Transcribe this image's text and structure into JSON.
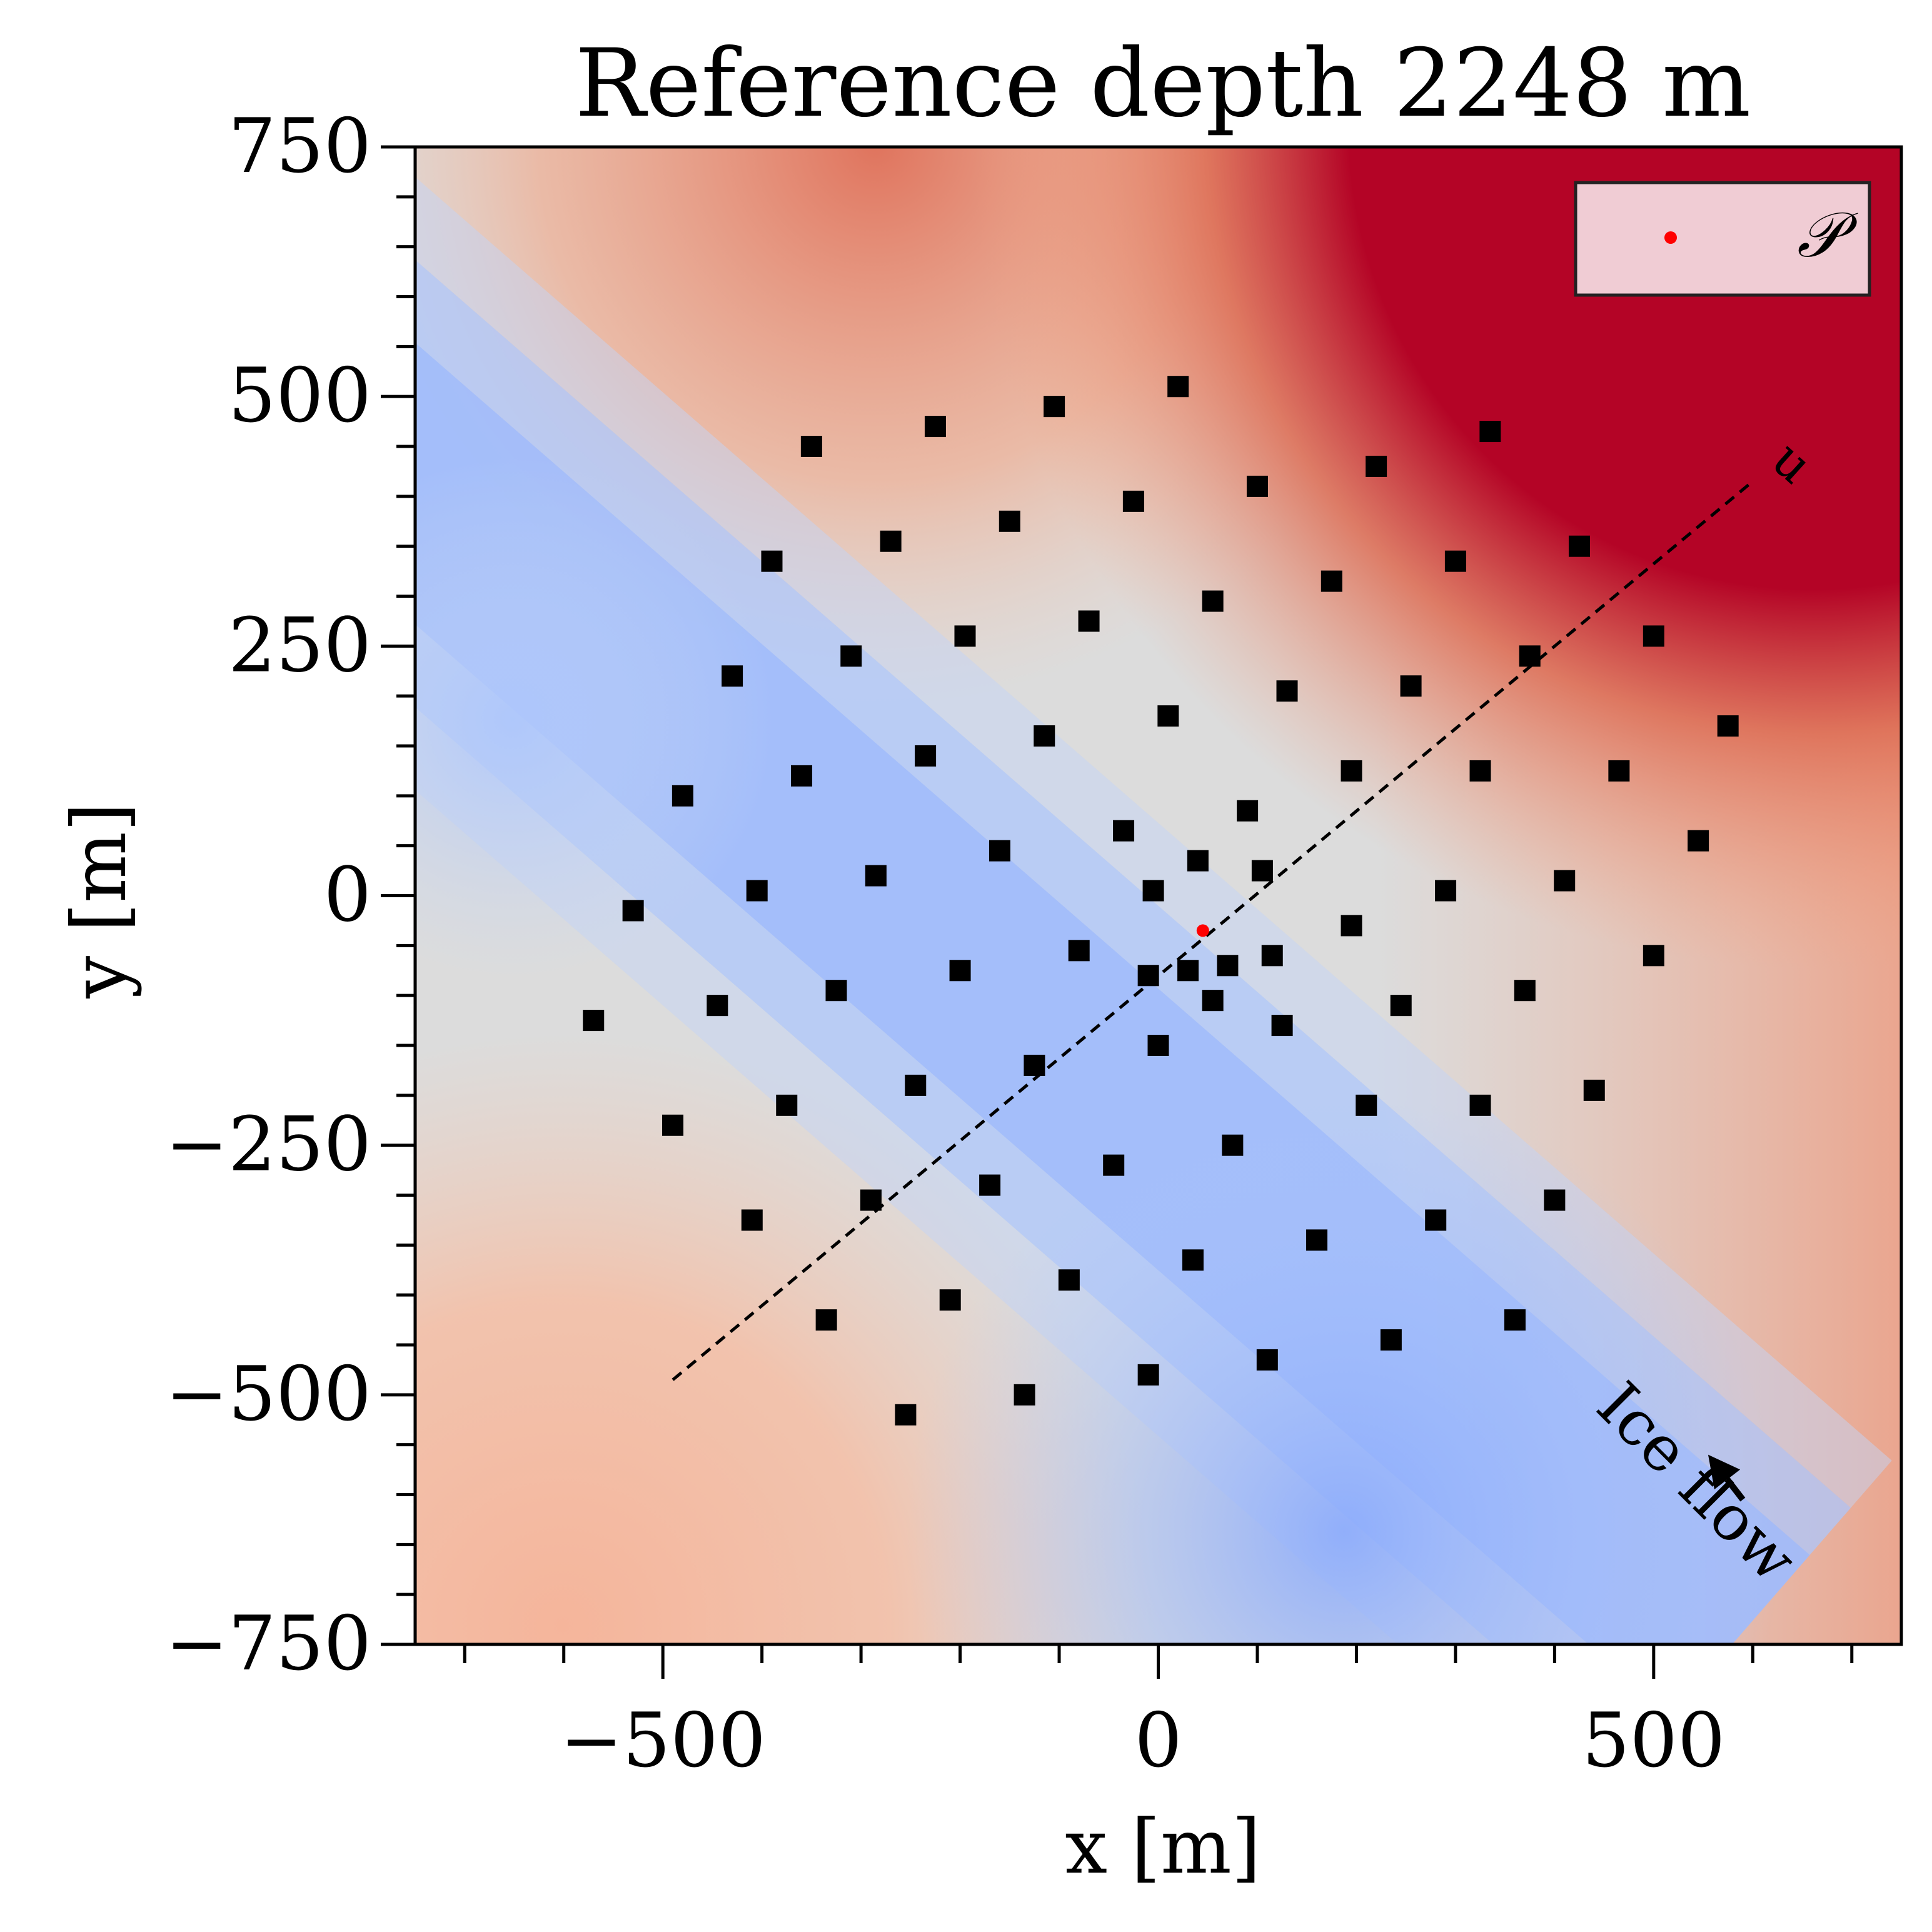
{
  "chart_data": {
    "type": "scatter",
    "title": "Reference depth 2248 m",
    "xlabel": "x [m]",
    "ylabel": "y [m]",
    "xlim": [
      -750,
      750
    ],
    "ylim": [
      -750,
      750
    ],
    "xticks": [
      -500,
      0,
      500
    ],
    "yticks": [
      750,
      500,
      250,
      0,
      -250,
      -500,
      -750
    ],
    "xtick_labels": [
      "−500",
      "0",
      "500"
    ],
    "ytick_labels": [
      "750",
      "500",
      "250",
      "0",
      "−250",
      "−500",
      "−750"
    ],
    "grid": false,
    "legend": {
      "position": "top-right",
      "label": "𝒫",
      "marker_color": "#ff0000"
    },
    "background_field": {
      "colormap": "coolwarm",
      "colors": {
        "low": "#8aaafc",
        "mid": "#dcdcdc",
        "high": "#b40426"
      },
      "description_direction": "increases toward upper-right"
    },
    "u_axis": {
      "label": "u",
      "x": [
        -490,
        600
      ],
      "y": [
        -485,
        415
      ],
      "style": "dashed"
    },
    "point_P": {
      "x": 45,
      "y": -35,
      "color": "#ff0000"
    },
    "annotation": {
      "text": "Ice flow",
      "arrow_from": [
        590,
        -605
      ],
      "arrow_to": [
        555,
        -560
      ]
    },
    "series": [
      {
        "name": "stations",
        "marker": "square",
        "color": "#000000",
        "x": [
          -350,
          -225,
          -105,
          20,
          100,
          220,
          335,
          -390,
          -270,
          -150,
          -25,
          175,
          300,
          425,
          -430,
          -310,
          -195,
          -70,
          55,
          130,
          255,
          375,
          500,
          -480,
          -360,
          -235,
          -115,
          10,
          195,
          325,
          465,
          575,
          -530,
          -405,
          -285,
          -160,
          -35,
          40,
          90,
          105,
          -5,
          290,
          410,
          545,
          -570,
          -445,
          -325,
          -200,
          -80,
          -10,
          30,
          70,
          55,
          115,
          195,
          370,
          500,
          -490,
          -375,
          -245,
          -125,
          0,
          125,
          245,
          210,
          325,
          440,
          -410,
          -290,
          -170,
          -45,
          75,
          160,
          280,
          400,
          -335,
          -210,
          -90,
          35,
          110,
          235,
          360,
          -255,
          -135,
          -10
        ],
        "y": [
          450,
          470,
          490,
          510,
          410,
          430,
          465,
          335,
          355,
          375,
          395,
          315,
          335,
          350,
          220,
          240,
          260,
          275,
          295,
          205,
          210,
          240,
          260,
          100,
          120,
          140,
          160,
          180,
          125,
          125,
          125,
          170,
          -15,
          5,
          20,
          45,
          65,
          35,
          85,
          25,
          5,
          5,
          15,
          55,
          -125,
          -110,
          -95,
          -75,
          -55,
          -80,
          -75,
          -70,
          -105,
          -60,
          -30,
          -95,
          -60,
          -230,
          -210,
          -190,
          -170,
          -150,
          -130,
          -110,
          -210,
          -210,
          -195,
          -325,
          -305,
          -290,
          -270,
          -250,
          -345,
          -325,
          -305,
          -425,
          -405,
          -385,
          -365,
          -465,
          -445,
          -425,
          -520,
          -500,
          -480
        ]
      }
    ]
  }
}
